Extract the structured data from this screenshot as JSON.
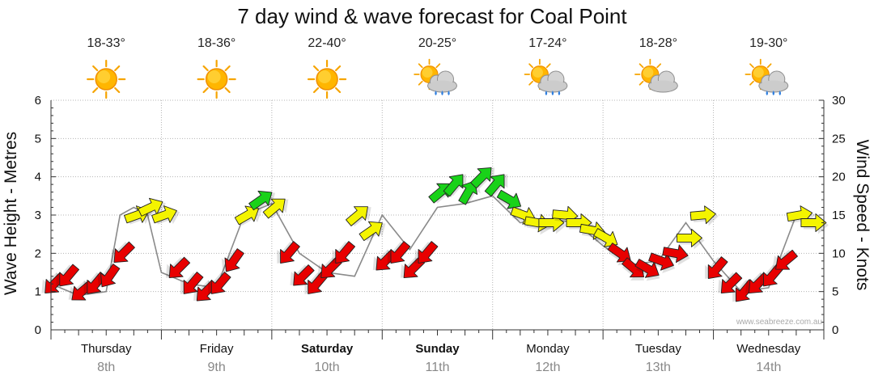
{
  "chart_data": {
    "type": "line",
    "title": "7 day wind & wave forecast for Coal Point",
    "ylabel_left": "Wave Height - Metres",
    "ylabel_right": "Wind Speed - Knots",
    "ylim_left": [
      0,
      6
    ],
    "ylim_right": [
      0,
      30
    ],
    "yticks_left": [
      "0",
      "1",
      "2",
      "3",
      "4",
      "5",
      "6"
    ],
    "yticks_right": [
      "0",
      "5",
      "10",
      "15",
      "20",
      "25",
      "30"
    ],
    "watermark": "www.seabreeze.com.au",
    "days": [
      {
        "day": "Thursday",
        "date": "8th",
        "bold": false,
        "temp": "18-33°",
        "icon": "sun-icon"
      },
      {
        "day": "Friday",
        "date": "9th",
        "bold": false,
        "temp": "18-36°",
        "icon": "sun-icon"
      },
      {
        "day": "Saturday",
        "date": "10th",
        "bold": true,
        "temp": "22-40°",
        "icon": "sun-icon"
      },
      {
        "day": "Sunday",
        "date": "11th",
        "bold": true,
        "temp": "20-25°",
        "icon": "sun-cloud-rain-icon"
      },
      {
        "day": "Monday",
        "date": "12th",
        "bold": false,
        "temp": "17-24°",
        "icon": "sun-cloud-rain-icon"
      },
      {
        "day": "Tuesday",
        "date": "13th",
        "bold": false,
        "temp": "18-28°",
        "icon": "sun-cloud-icon"
      },
      {
        "day": "Wednesday",
        "date": "14th",
        "bold": false,
        "temp": "19-30°",
        "icon": "sun-cloud-rain-icon"
      }
    ],
    "wind_series": {
      "name": "Wind Speed (knots)",
      "hours": [
        0,
        3,
        6,
        9,
        12,
        15,
        18,
        21,
        24,
        27,
        30,
        33,
        36,
        39,
        42,
        45,
        48,
        51,
        54,
        57,
        60,
        63,
        66,
        69,
        72,
        75,
        78,
        81,
        84,
        87,
        90,
        93,
        96,
        99,
        102,
        105,
        108,
        111,
        114,
        117,
        120,
        123,
        126,
        129,
        132,
        135,
        138,
        141,
        144,
        147,
        150,
        153,
        156,
        159,
        162,
        165
      ],
      "knots": [
        6,
        7,
        5,
        6,
        7,
        10,
        15,
        16,
        15,
        8,
        6,
        5,
        6,
        9,
        15,
        17,
        16,
        10,
        7,
        6,
        8,
        10,
        15,
        13,
        9,
        10,
        8,
        10,
        18,
        19,
        18,
        20,
        19,
        17,
        15,
        14,
        14,
        15,
        14,
        13,
        12,
        10,
        8,
        8,
        9,
        10,
        12,
        15,
        8,
        6,
        5,
        6,
        7,
        9,
        15,
        14
      ],
      "direction_deg": [
        45,
        40,
        50,
        40,
        35,
        45,
        250,
        245,
        250,
        45,
        40,
        45,
        40,
        35,
        240,
        235,
        230,
        40,
        45,
        40,
        45,
        40,
        230,
        235,
        45,
        40,
        45,
        40,
        230,
        220,
        210,
        225,
        220,
        300,
        290,
        280,
        270,
        275,
        270,
        280,
        300,
        305,
        310,
        300,
        290,
        280,
        270,
        265,
        40,
        45,
        40,
        45,
        40,
        50,
        260,
        270
      ]
    },
    "wave_series": {
      "name": "Wave Height (metres)",
      "hours": [
        0,
        6,
        12,
        15,
        18,
        21,
        24,
        30,
        36,
        42,
        48,
        54,
        60,
        66,
        72,
        78,
        84,
        90,
        96,
        102,
        108,
        114,
        120,
        126,
        132,
        138,
        144,
        150,
        156,
        162,
        165
      ],
      "metres": [
        1.2,
        0.9,
        1.0,
        3.0,
        3.2,
        3.0,
        1.5,
        1.2,
        1.1,
        3.0,
        3.3,
        2.0,
        1.5,
        1.4,
        3.0,
        2.1,
        3.2,
        3.3,
        3.5,
        2.8,
        2.9,
        2.8,
        2.2,
        1.7,
        1.8,
        2.8,
        1.8,
        1.0,
        1.1,
        3.0,
        2.8
      ]
    }
  },
  "colors": {
    "calm": "#e80000",
    "moderate": "#f4f400",
    "strong": "#19d219",
    "outline": "#222222",
    "wave_line": "#8a8a8a",
    "grid": "#b4b4b4"
  }
}
